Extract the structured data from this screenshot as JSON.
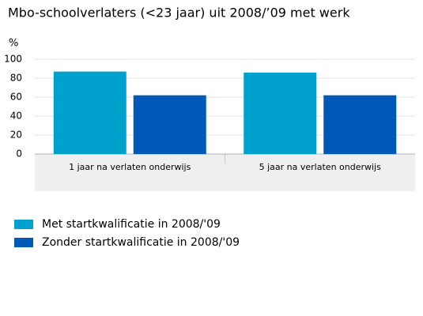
{
  "chart_data": {
    "type": "bar",
    "title": "Mbo-schoolverlaters (<23 jaar) uit 2008/’09 met werk",
    "y_label": "%",
    "categories": [
      "1 jaar na verlaten onderwijs",
      "5 jaar na verlaten onderwijs"
    ],
    "series": [
      {
        "name": "Met startkwalificatie in 2008/'09",
        "color": "#00a1cd",
        "values": [
          87,
          86
        ]
      },
      {
        "name": "Zonder startkwalificatie in 2008/'09",
        "color": "#0058b8",
        "values": [
          62,
          62
        ]
      }
    ],
    "ylim": [
      0,
      100
    ],
    "yticks": [
      0,
      20,
      40,
      60,
      80,
      100
    ],
    "grid": true
  }
}
